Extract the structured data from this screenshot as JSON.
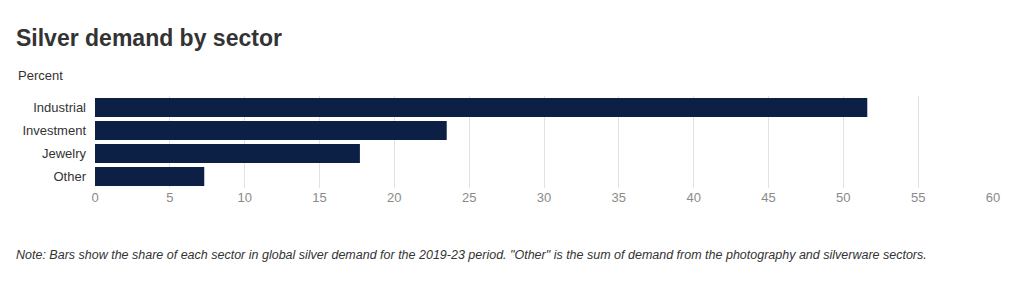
{
  "chart_data": {
    "type": "bar",
    "orientation": "horizontal",
    "title": "Silver demand by sector",
    "subtitle": "Percent",
    "annotations": [
      "Note: Bars show the share of each sector in global silver demand for the 2019-23 period. \"Other\" is the sum of demand from the photography and silverware sectors."
    ],
    "categories": [
      "Industrial",
      "Investment",
      "Jewelry",
      "Other"
    ],
    "values": [
      51.6,
      23.5,
      17.7,
      7.3
    ],
    "color": "#0c2045",
    "xlim": [
      0,
      60
    ],
    "xticks": [
      0,
      5,
      10,
      15,
      20,
      25,
      30,
      35,
      40,
      45,
      50,
      55,
      60
    ],
    "grid": true
  }
}
